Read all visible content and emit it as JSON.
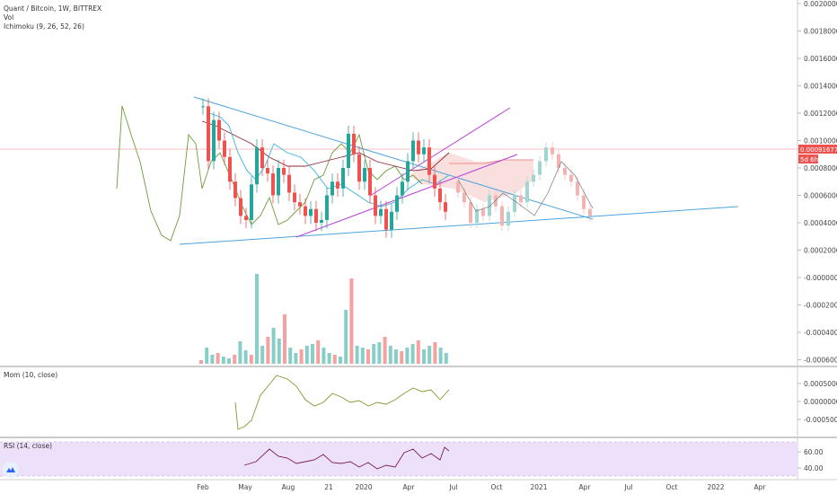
{
  "header": {
    "title": "Quant / Bitcoin, 1W, BITTREX",
    "volume_label": "Vol",
    "ichimoku_label": "Ichimoku (9, 26, 52, 26)"
  },
  "price_pane": {
    "y_ticks": [
      "0.00200000",
      "0.00180000",
      "0.00160000",
      "0.00140000",
      "0.00120000",
      "0.00100000",
      "0.00080000",
      "0.00060000",
      "0.00040000",
      "0.00020000",
      "-0.00000000",
      "-0.00020000",
      "-0.00040000",
      "-0.00060000"
    ],
    "current_price": "0.00091677",
    "countdown": "5d 6h",
    "price_color": "#ef5350",
    "countdown_color": "#ef5350"
  },
  "momentum_pane": {
    "label": "Mom (10, close)",
    "y_ticks": [
      "0.00050000",
      "0.00000000",
      "-0.00050000"
    ],
    "color": "#7e9b2c"
  },
  "rsi_pane": {
    "label": "RSI (14, close)",
    "y_ticks": [
      "60.00",
      "40.00"
    ],
    "line_color": "#7b1f4f",
    "band_color": "#ece0fb"
  },
  "x_axis": {
    "labels": [
      "Feb",
      "May",
      "Aug",
      "21",
      "2020",
      "Apr",
      "Jul",
      "Oct",
      "2021",
      "Apr",
      "Jul",
      "Oct",
      "2022",
      "Apr"
    ]
  },
  "chart_data": {
    "type": "line",
    "series": [
      {
        "values": [
          0.00125,
          0.00085,
          0.00115,
          0.001,
          0.00088,
          0.0007,
          0.00058,
          0.00045,
          0.00042,
          0.00068,
          0.00095,
          0.0008,
          0.00076,
          0.0006,
          0.0008,
          0.00075,
          0.00062,
          0.00055,
          0.00052,
          0.00045,
          0.0005,
          0.0004,
          0.00042,
          0.0006,
          0.0007,
          0.00065,
          0.0008,
          0.00105,
          0.0009,
          0.0007,
          0.0008,
          0.0006,
          0.00045,
          0.0005,
          0.00035,
          0.00048,
          0.0006,
          0.0007,
          0.00085,
          0.001,
          0.0009,
          0.00095,
          0.00075,
          0.00065,
          0.00055,
          0.00048
        ]
      }
    ],
    "price_axis": {
      "ylim": [
        -0.0006,
        0.002
      ]
    }
  },
  "colors": {
    "up": "#26a69a",
    "down": "#ef5350",
    "trend": "#4ca3dd",
    "channel": "#b93edb",
    "chikou": "#6c9a3b",
    "kijun": "#8e2a3e",
    "tenkan": "#3ab0dc",
    "cloud": "#f7c9c9"
  }
}
